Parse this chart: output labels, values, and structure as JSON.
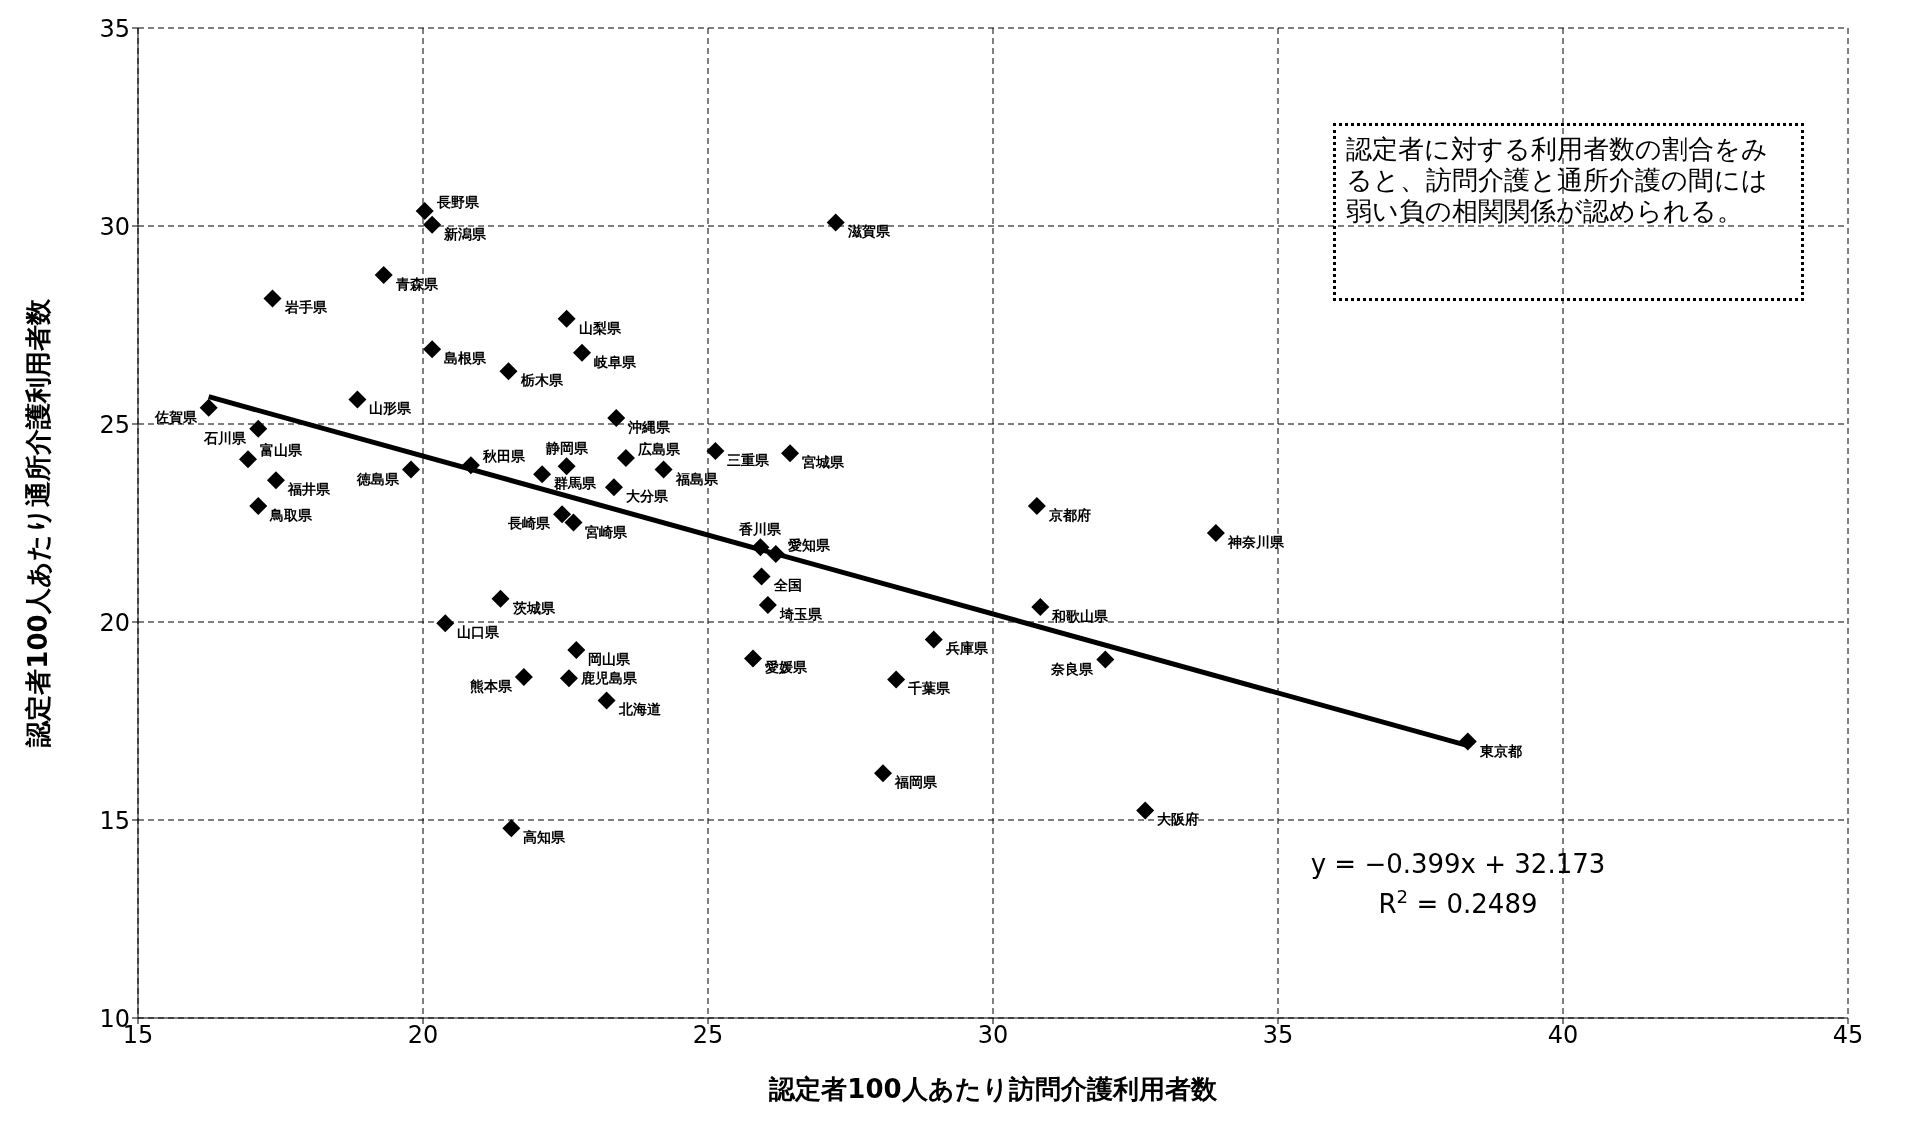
{
  "chart_data": {
    "type": "scatter",
    "xlabel": "認定者100人あたり訪問介護利用者数",
    "ylabel": "認定者100人あたり通所介護利用者数",
    "xlim": [
      15,
      45
    ],
    "xticks": [
      15,
      20,
      25,
      30,
      35,
      40,
      45
    ],
    "ylim": [
      10,
      35
    ],
    "yticks": [
      10,
      15,
      20,
      25,
      30,
      35
    ],
    "grid": true,
    "legend": false,
    "marker": "diamond",
    "series": [
      {
        "color": "#000000",
        "x": [
          20.03,
          20.16,
          19.31,
          17.36,
          27.24,
          22.52,
          22.79,
          20.16,
          21.5,
          16.24,
          18.85,
          23.39,
          17.11,
          16.93,
          17.42,
          23.56,
          25.13,
          26.44,
          20.84,
          22.52,
          19.79,
          22.09,
          24.22,
          23.35,
          17.11,
          22.44,
          22.64,
          30.77,
          33.91,
          25.92,
          26.19,
          25.94,
          26.05,
          21.36,
          20.39,
          30.83,
          22.69,
          28.96,
          25.79,
          31.97,
          21.77,
          22.56,
          28.3,
          23.22,
          38.33,
          28.07,
          32.67,
          21.55
        ],
        "values": [
          30.38,
          30.03,
          28.76,
          28.17,
          30.09,
          27.66,
          26.8,
          26.89,
          26.33,
          25.41,
          25.62,
          25.15,
          24.88,
          24.11,
          23.58,
          24.14,
          24.32,
          24.26,
          23.96,
          23.93,
          23.85,
          23.73,
          23.85,
          23.4,
          22.93,
          22.72,
          22.51,
          22.93,
          22.25,
          21.89,
          21.72,
          21.15,
          20.43,
          20.59,
          19.97,
          20.38,
          19.29,
          19.56,
          19.08,
          19.05,
          18.61,
          18.58,
          18.55,
          18.02,
          16.98,
          16.18,
          15.24,
          14.79
        ]
      },
      {
        "type": "line",
        "marker": "none",
        "color": "#000000",
        "x": [
          16.24,
          38.33
        ],
        "values": [
          25.69,
          16.88
        ]
      }
    ],
    "annotations": [
      {
        "text": "長野県",
        "x": 20.03,
        "y": 30.38
      },
      {
        "text": "新潟県",
        "x": 20.16,
        "y": 30.03
      },
      {
        "text": "青森県",
        "x": 19.31,
        "y": 28.76
      },
      {
        "text": "岩手県",
        "x": 17.36,
        "y": 28.17
      },
      {
        "text": "滋賀県",
        "x": 27.24,
        "y": 30.09
      },
      {
        "text": "山梨県",
        "x": 22.52,
        "y": 27.66
      },
      {
        "text": "岐阜県",
        "x": 22.79,
        "y": 26.8
      },
      {
        "text": "島根県",
        "x": 20.16,
        "y": 26.89
      },
      {
        "text": "栃木県",
        "x": 21.5,
        "y": 26.33
      },
      {
        "text": "佐賀県",
        "x": 16.24,
        "y": 25.41
      },
      {
        "text": "山形県",
        "x": 18.85,
        "y": 25.62
      },
      {
        "text": "沖縄県",
        "x": 23.39,
        "y": 25.15
      },
      {
        "text": "石川県",
        "x": 17.11,
        "y": 24.88
      },
      {
        "text": "富山県",
        "x": 16.93,
        "y": 24.11
      },
      {
        "text": "福井県",
        "x": 17.42,
        "y": 23.58
      },
      {
        "text": "広島県",
        "x": 23.56,
        "y": 24.14
      },
      {
        "text": "三重県",
        "x": 25.13,
        "y": 24.32
      },
      {
        "text": "宮城県",
        "x": 26.44,
        "y": 24.26
      },
      {
        "text": "秋田県",
        "x": 20.84,
        "y": 23.96
      },
      {
        "text": "静岡県",
        "x": 22.52,
        "y": 23.93
      },
      {
        "text": "徳島県",
        "x": 19.79,
        "y": 23.85
      },
      {
        "text": "群馬県",
        "x": 22.09,
        "y": 23.73
      },
      {
        "text": "福島県",
        "x": 24.22,
        "y": 23.85
      },
      {
        "text": "大分県",
        "x": 23.35,
        "y": 23.4
      },
      {
        "text": "鳥取県",
        "x": 17.11,
        "y": 22.93
      },
      {
        "text": "長崎県",
        "x": 22.44,
        "y": 22.72
      },
      {
        "text": "宮崎県",
        "x": 22.64,
        "y": 22.51
      },
      {
        "text": "京都府",
        "x": 30.77,
        "y": 22.93
      },
      {
        "text": "神奈川県",
        "x": 33.91,
        "y": 22.25
      },
      {
        "text": "香川県",
        "x": 25.92,
        "y": 21.89
      },
      {
        "text": "愛知県",
        "x": 26.19,
        "y": 21.72
      },
      {
        "text": "全国",
        "x": 25.94,
        "y": 21.15
      },
      {
        "text": "埼玉県",
        "x": 26.05,
        "y": 20.43
      },
      {
        "text": "茨城県",
        "x": 21.36,
        "y": 20.59
      },
      {
        "text": "山口県",
        "x": 20.39,
        "y": 19.97
      },
      {
        "text": "和歌山県",
        "x": 30.83,
        "y": 20.38
      },
      {
        "text": "岡山県",
        "x": 22.69,
        "y": 19.29
      },
      {
        "text": "兵庫県",
        "x": 28.96,
        "y": 19.56
      },
      {
        "text": "愛媛県",
        "x": 25.79,
        "y": 19.08
      },
      {
        "text": "奈良県",
        "x": 31.97,
        "y": 19.05
      },
      {
        "text": "熊本県",
        "x": 21.77,
        "y": 18.61
      },
      {
        "text": "鹿児島県",
        "x": 22.56,
        "y": 18.58
      },
      {
        "text": "千葉県",
        "x": 28.3,
        "y": 18.55
      },
      {
        "text": "北海道",
        "x": 23.22,
        "y": 18.02
      },
      {
        "text": "東京都",
        "x": 38.33,
        "y": 16.98
      },
      {
        "text": "福岡県",
        "x": 28.07,
        "y": 16.18
      },
      {
        "text": "大阪府",
        "x": 32.67,
        "y": 15.24
      },
      {
        "text": "高知県",
        "x": 21.55,
        "y": 14.79
      },
      "y = −0.399x + 32.173",
      "R$^{2}$ = 0.2489",
      "認定者に対する利用者数の割合をみると、訪問介護と通所介護の間には弱い負の相関関係が認められる。"
    ]
  }
}
